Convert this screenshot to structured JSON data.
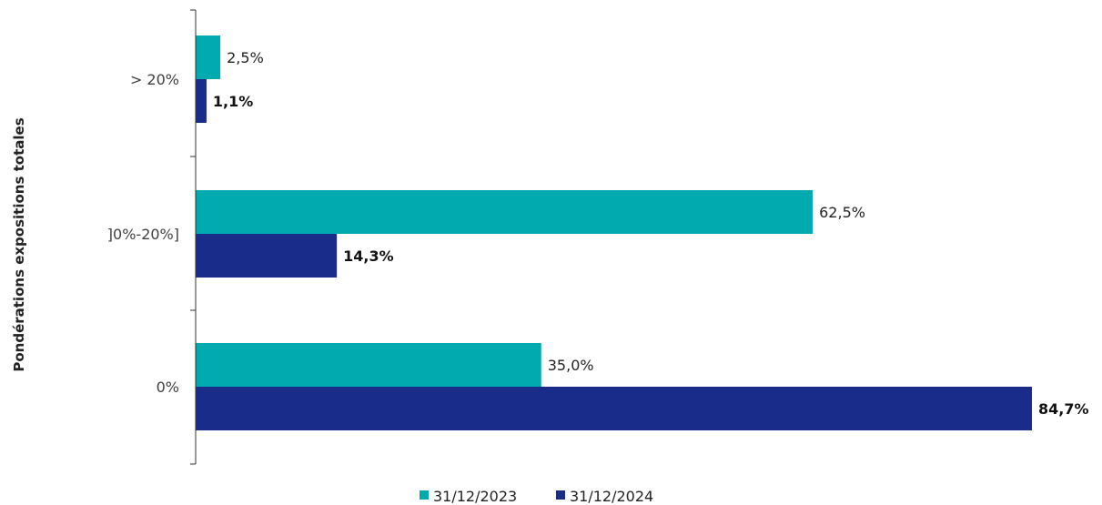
{
  "chart_data": {
    "type": "bar",
    "orientation": "horizontal",
    "ylabel": "Pondérations expositions totales",
    "categories": [
      "> 20%",
      "]0%-20%]",
      "0%"
    ],
    "series": [
      {
        "name": "31/12/2023",
        "color": "#00AAAF",
        "values": [
          2.5,
          62.5,
          35.0
        ],
        "labels": [
          "2,5%",
          "62,5%",
          "35,0%"
        ],
        "label_bold": false
      },
      {
        "name": "31/12/2024",
        "color": "#1A2C8A",
        "values": [
          1.1,
          14.3,
          84.7
        ],
        "labels": [
          "1,1%",
          "14,3%",
          "84,7%"
        ],
        "label_bold": true
      }
    ],
    "xlim": [
      0,
      100
    ],
    "grid": false,
    "legend_position": "bottom"
  }
}
